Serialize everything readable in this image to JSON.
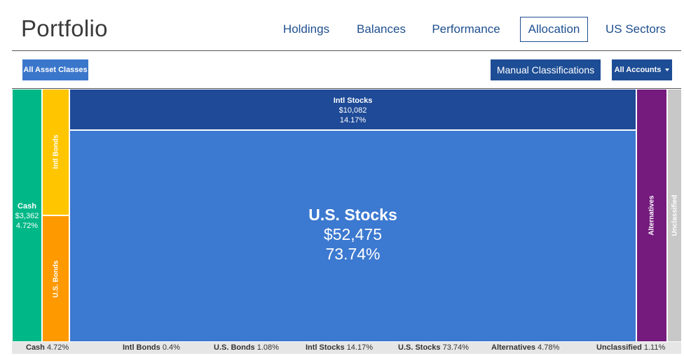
{
  "header": {
    "title": "Portfolio",
    "tabs": [
      {
        "label": "Holdings",
        "active": false
      },
      {
        "label": "Balances",
        "active": false
      },
      {
        "label": "Performance",
        "active": false
      },
      {
        "label": "Allocation",
        "active": true
      },
      {
        "label": "US Sectors",
        "active": false
      }
    ]
  },
  "toolbar": {
    "asset_classes_label": "All Asset Classes",
    "manual_label": "Manual Classifications",
    "accounts_label": "All Accounts"
  },
  "colors": {
    "accent": "#1f4f8f",
    "cash": "#00b887",
    "intl_bonds": "#ffc600",
    "us_bonds": "#ff9900",
    "intl_stocks": "#1e4a97",
    "us_stocks": "#3c79d0",
    "alternatives": "#741b7d",
    "unclassified": "#c8c8c8"
  },
  "treemap": {
    "cash": {
      "label": "Cash",
      "value": "$3,362",
      "percent": "4.72%"
    },
    "intl_bonds": {
      "label": "Intl Bonds"
    },
    "us_bonds": {
      "label": "U.S. Bonds"
    },
    "intl_stocks": {
      "label": "Intl Stocks",
      "value": "$10,082",
      "percent": "14.17%"
    },
    "us_stocks": {
      "label": "U.S. Stocks",
      "value": "$52,475",
      "percent": "73.74%"
    },
    "alternatives": {
      "label": "Alternatives"
    },
    "unclassified": {
      "label": "Unclassified"
    }
  },
  "legend": [
    {
      "label": "Cash",
      "percent": "4.72%"
    },
    {
      "label": "Intl Bonds",
      "percent": "0.4%"
    },
    {
      "label": "U.S. Bonds",
      "percent": "1.08%"
    },
    {
      "label": "Intl Stocks",
      "percent": "14.17%"
    },
    {
      "label": "U.S. Stocks",
      "percent": "73.74%"
    },
    {
      "label": "Alternatives",
      "percent": "4.78%"
    },
    {
      "label": "Unclassified",
      "percent": "1.11%"
    }
  ]
}
